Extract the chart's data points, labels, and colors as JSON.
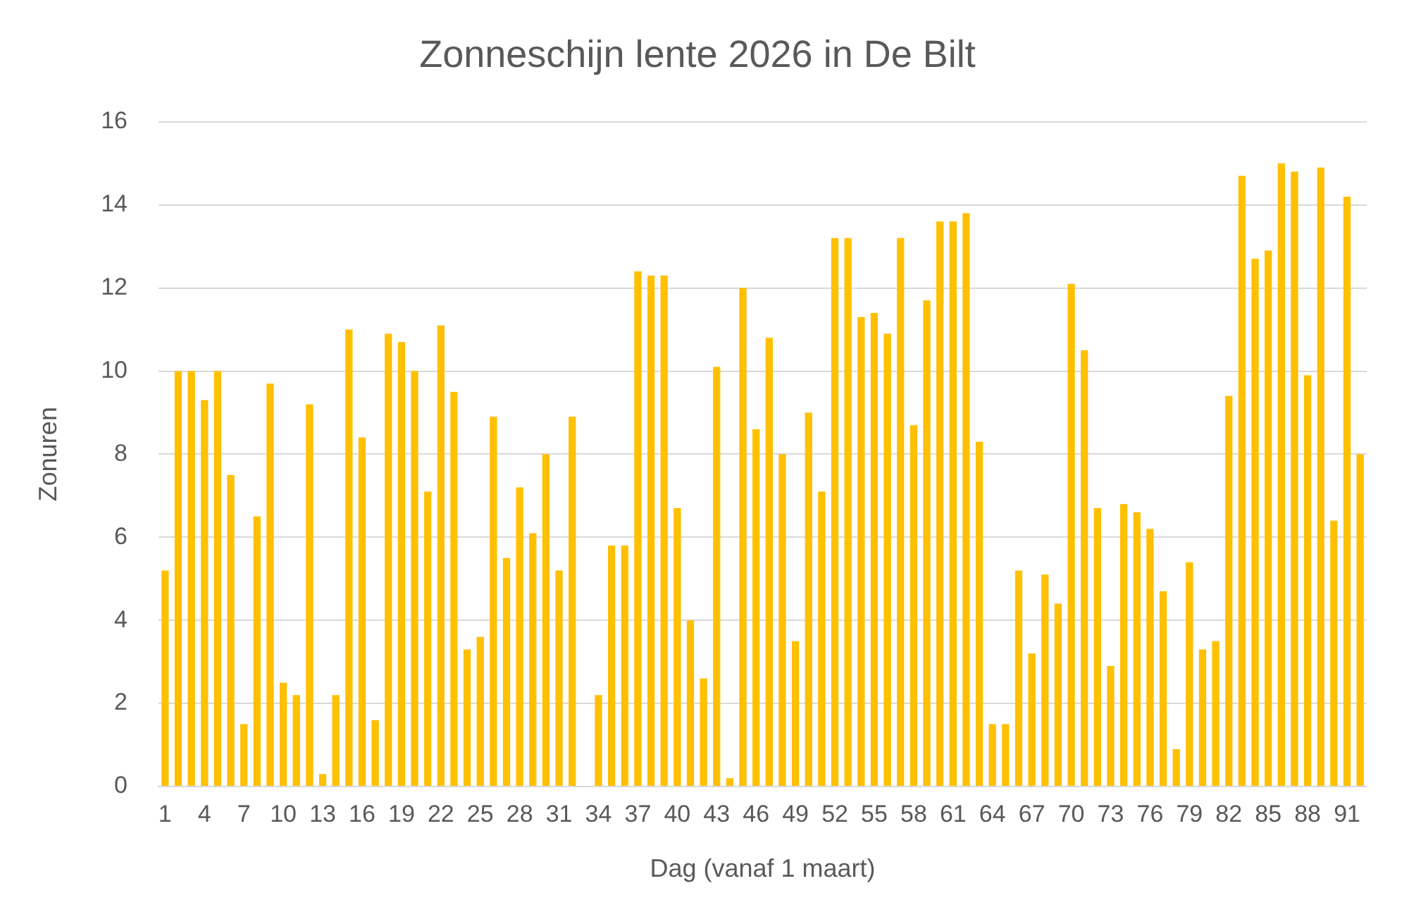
{
  "chart_data": {
    "type": "bar",
    "title": "Zonneschijn lente 2026 in De Bilt",
    "xlabel": "Dag (vanaf 1 maart)",
    "ylabel": "Zonuren",
    "categories": [
      "1",
      null,
      null,
      "4",
      null,
      null,
      "7",
      null,
      null,
      "10",
      null,
      null,
      "13",
      null,
      null,
      "16",
      null,
      null,
      "19",
      null,
      null,
      "22",
      null,
      null,
      "25",
      null,
      null,
      "28",
      null,
      null,
      "31",
      null,
      null,
      "34",
      null,
      null,
      "37",
      null,
      null,
      "40",
      null,
      null,
      "43",
      null,
      null,
      "46",
      null,
      null,
      "49",
      null,
      null,
      "52",
      null,
      null,
      "55",
      null,
      null,
      "58",
      null,
      null,
      "61",
      null,
      null,
      "64",
      null,
      null,
      "67",
      null,
      null,
      "70",
      null,
      null,
      "73",
      null,
      null,
      "76",
      null,
      null,
      "79",
      null,
      null,
      "82",
      null,
      null,
      "85",
      null,
      null,
      "88",
      null,
      null,
      "91",
      null
    ],
    "values": [
      5.2,
      10.0,
      10.0,
      9.3,
      10.0,
      7.5,
      1.5,
      6.5,
      9.7,
      2.5,
      2.2,
      9.2,
      0.3,
      2.2,
      11.0,
      8.4,
      1.6,
      10.9,
      10.7,
      10.0,
      7.1,
      11.1,
      9.5,
      3.3,
      3.6,
      8.9,
      5.5,
      7.2,
      6.1,
      8.0,
      5.2,
      8.9,
      0,
      2.2,
      5.8,
      5.8,
      12.4,
      12.3,
      12.3,
      6.7,
      4.0,
      2.6,
      10.1,
      0.2,
      12.0,
      8.6,
      10.8,
      8.0,
      3.5,
      9.0,
      7.1,
      13.2,
      13.2,
      11.3,
      11.4,
      10.9,
      13.2,
      8.7,
      11.7,
      13.6,
      13.6,
      13.8,
      8.3,
      1.5,
      1.5,
      5.2,
      3.2,
      5.1,
      4.4,
      12.1,
      10.5,
      6.7,
      2.9,
      6.8,
      6.6,
      6.2,
      4.7,
      0.9,
      5.4,
      3.3,
      3.5,
      9.4,
      14.7,
      12.7,
      12.9,
      15.0,
      14.8,
      9.9,
      14.9,
      6.4,
      14.2,
      8.0
    ],
    "color": "#ffc000",
    "ylim": [
      0,
      16
    ],
    "yticks": [
      0,
      2,
      4,
      6,
      8,
      10,
      12,
      14,
      16
    ],
    "grid": "y"
  }
}
